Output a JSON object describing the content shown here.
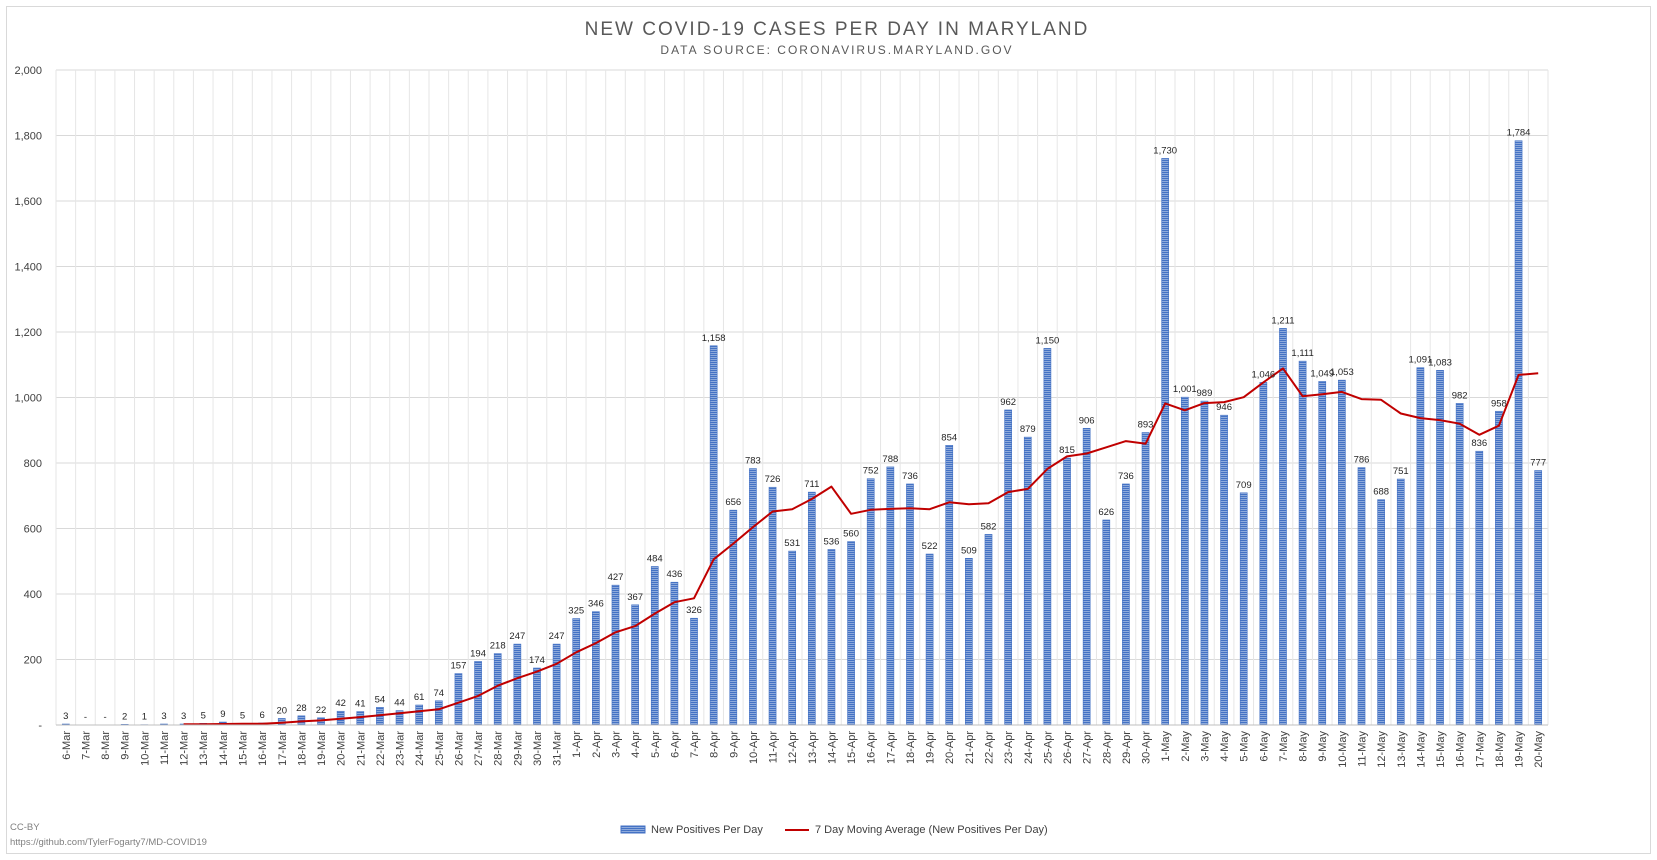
{
  "chart_data": {
    "type": "bar",
    "title": "NEW COVID-19 CASES PER DAY IN MARYLAND",
    "subtitle": "DATA SOURCE: CORONAVIRUS.MARYLAND.GOV",
    "xlabel": "",
    "ylabel": "",
    "ylim": [
      0,
      2000
    ],
    "yticks": [
      0,
      200,
      400,
      600,
      800,
      1000,
      1200,
      1400,
      1600,
      1800,
      2000
    ],
    "ytick_labels": [
      "-",
      "200",
      "400",
      "600",
      "800",
      "1,000",
      "1,200",
      "1,400",
      "1,600",
      "1,800",
      "2,000"
    ],
    "grid": true,
    "legend_position": "bottom",
    "categories": [
      "6-Mar",
      "7-Mar",
      "8-Mar",
      "9-Mar",
      "10-Mar",
      "11-Mar",
      "12-Mar",
      "13-Mar",
      "14-Mar",
      "15-Mar",
      "16-Mar",
      "17-Mar",
      "18-Mar",
      "19-Mar",
      "20-Mar",
      "21-Mar",
      "22-Mar",
      "23-Mar",
      "24-Mar",
      "25-Mar",
      "26-Mar",
      "27-Mar",
      "28-Mar",
      "29-Mar",
      "30-Mar",
      "31-Mar",
      "1-Apr",
      "2-Apr",
      "3-Apr",
      "4-Apr",
      "5-Apr",
      "6-Apr",
      "7-Apr",
      "8-Apr",
      "9-Apr",
      "10-Apr",
      "11-Apr",
      "12-Apr",
      "13-Apr",
      "14-Apr",
      "15-Apr",
      "16-Apr",
      "17-Apr",
      "18-Apr",
      "19-Apr",
      "20-Apr",
      "21-Apr",
      "22-Apr",
      "23-Apr",
      "24-Apr",
      "25-Apr",
      "26-Apr",
      "27-Apr",
      "28-Apr",
      "29-Apr",
      "30-Apr",
      "1-May",
      "2-May",
      "3-May",
      "4-May",
      "5-May",
      "6-May",
      "7-May",
      "8-May",
      "9-May",
      "10-May",
      "11-May",
      "12-May",
      "13-May",
      "14-May",
      "15-May",
      "16-May",
      "17-May",
      "18-May",
      "19-May",
      "20-May"
    ],
    "series": [
      {
        "name": "New Positives Per Day",
        "type": "bar",
        "color": "#4472c4",
        "values": [
          3,
          0,
          0,
          2,
          1,
          3,
          3,
          5,
          9,
          5,
          6,
          20,
          28,
          22,
          42,
          41,
          54,
          44,
          61,
          74,
          157,
          194,
          218,
          247,
          174,
          247,
          325,
          346,
          427,
          367,
          484,
          436,
          326,
          1158,
          656,
          783,
          726,
          531,
          711,
          536,
          560,
          752,
          788,
          736,
          522,
          854,
          509,
          582,
          962,
          879,
          1150,
          815,
          906,
          626,
          736,
          893,
          1730,
          1001,
          989,
          946,
          709,
          1046,
          1211,
          1111,
          1049,
          1053,
          786,
          688,
          751,
          1091,
          1083,
          982,
          836,
          958,
          1784,
          777
        ],
        "labels": [
          "3",
          "-",
          "-",
          "2",
          "1",
          "3",
          "3",
          "5",
          "9",
          "5",
          "6",
          "20",
          "28",
          "22",
          "42",
          "41",
          "54",
          "44",
          "61",
          "74",
          "157",
          "194",
          "218",
          "247",
          "174",
          "247",
          "325",
          "346",
          "427",
          "367",
          "484",
          "436",
          "326",
          "1,158",
          "656",
          "783",
          "726",
          "531",
          "711",
          "536",
          "560",
          "752",
          "788",
          "736",
          "522",
          "854",
          "509",
          "582",
          "962",
          "879",
          "1,150",
          "815",
          "906",
          "626",
          "736",
          "893",
          "1,730",
          "1,001",
          "989",
          "946",
          "709",
          "1,046",
          "1,211",
          "1,111",
          "1,049",
          "1,053",
          "786",
          "688",
          "751",
          "1,091",
          "1,083",
          "982",
          "836",
          "958",
          "1,784",
          "777"
        ]
      },
      {
        "name": "7 Day Moving Average (New Positives Per Day)",
        "type": "line",
        "color": "#c00000",
        "values": [
          null,
          null,
          null,
          null,
          null,
          null,
          2,
          2,
          3,
          4,
          4,
          7,
          11,
          14,
          19,
          24,
          30,
          36,
          42,
          48,
          68,
          89,
          120,
          143,
          163,
          187,
          222,
          250,
          283,
          302,
          340,
          375,
          387,
          506,
          554,
          604,
          652,
          659,
          690,
          728,
          645,
          657,
          660,
          662,
          659,
          680,
          674,
          677,
          711,
          721,
          782,
          820,
          829,
          848,
          867,
          859,
          982,
          961,
          983,
          986,
          1001,
          1046,
          1089,
          1004,
          1010,
          1017,
          995,
          993,
          951,
          937,
          931,
          920,
          886,
          914,
          1069,
          1074
        ]
      }
    ]
  },
  "credit": {
    "license": "CC-BY",
    "url": "https://github.com/TylerFogarty7/MD-COVID19"
  }
}
